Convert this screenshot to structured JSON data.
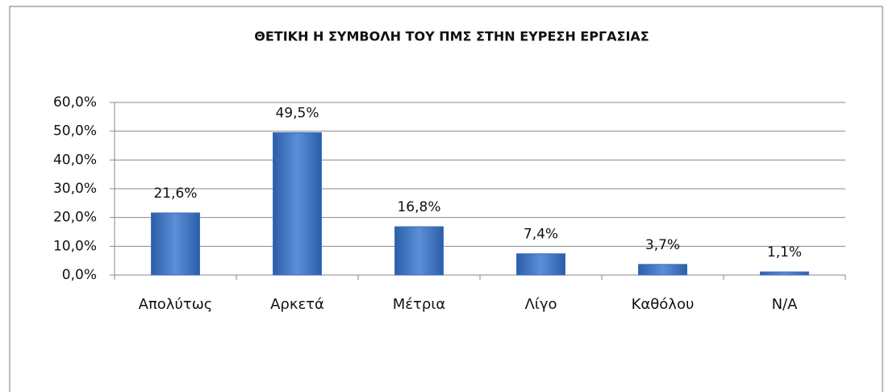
{
  "chart_data": {
    "type": "bar",
    "title": "ΘΕΤΙΚΗ Η ΣΥΜΒΟΛΗ ΤΟΥ ΠΜΣ ΣΤΗΝ ΕΥΡΕΣΗ ΕΡΓΑΣΙΑΣ",
    "categories": [
      "Απολύτως",
      "Αρκετά",
      "Μέτρια",
      "Λίγο",
      "Καθόλου",
      "N/A"
    ],
    "values": [
      21.6,
      49.5,
      16.8,
      7.4,
      3.7,
      1.1
    ],
    "value_labels": [
      "21,6%",
      "49,5%",
      "16,8%",
      "7,4%",
      "3,7%",
      "1,1%"
    ],
    "color": "#3b6fbf",
    "ylim": [
      0,
      60
    ],
    "yticks": [
      {
        "value": 0,
        "label": "0,0%"
      },
      {
        "value": 10,
        "label": "10,0%"
      },
      {
        "value": 20,
        "label": "20,0%"
      },
      {
        "value": 30,
        "label": "30,0%"
      },
      {
        "value": 40,
        "label": "40,0%"
      },
      {
        "value": 50,
        "label": "50,0%"
      },
      {
        "value": 60,
        "label": "60,0%"
      }
    ],
    "grid": true
  }
}
